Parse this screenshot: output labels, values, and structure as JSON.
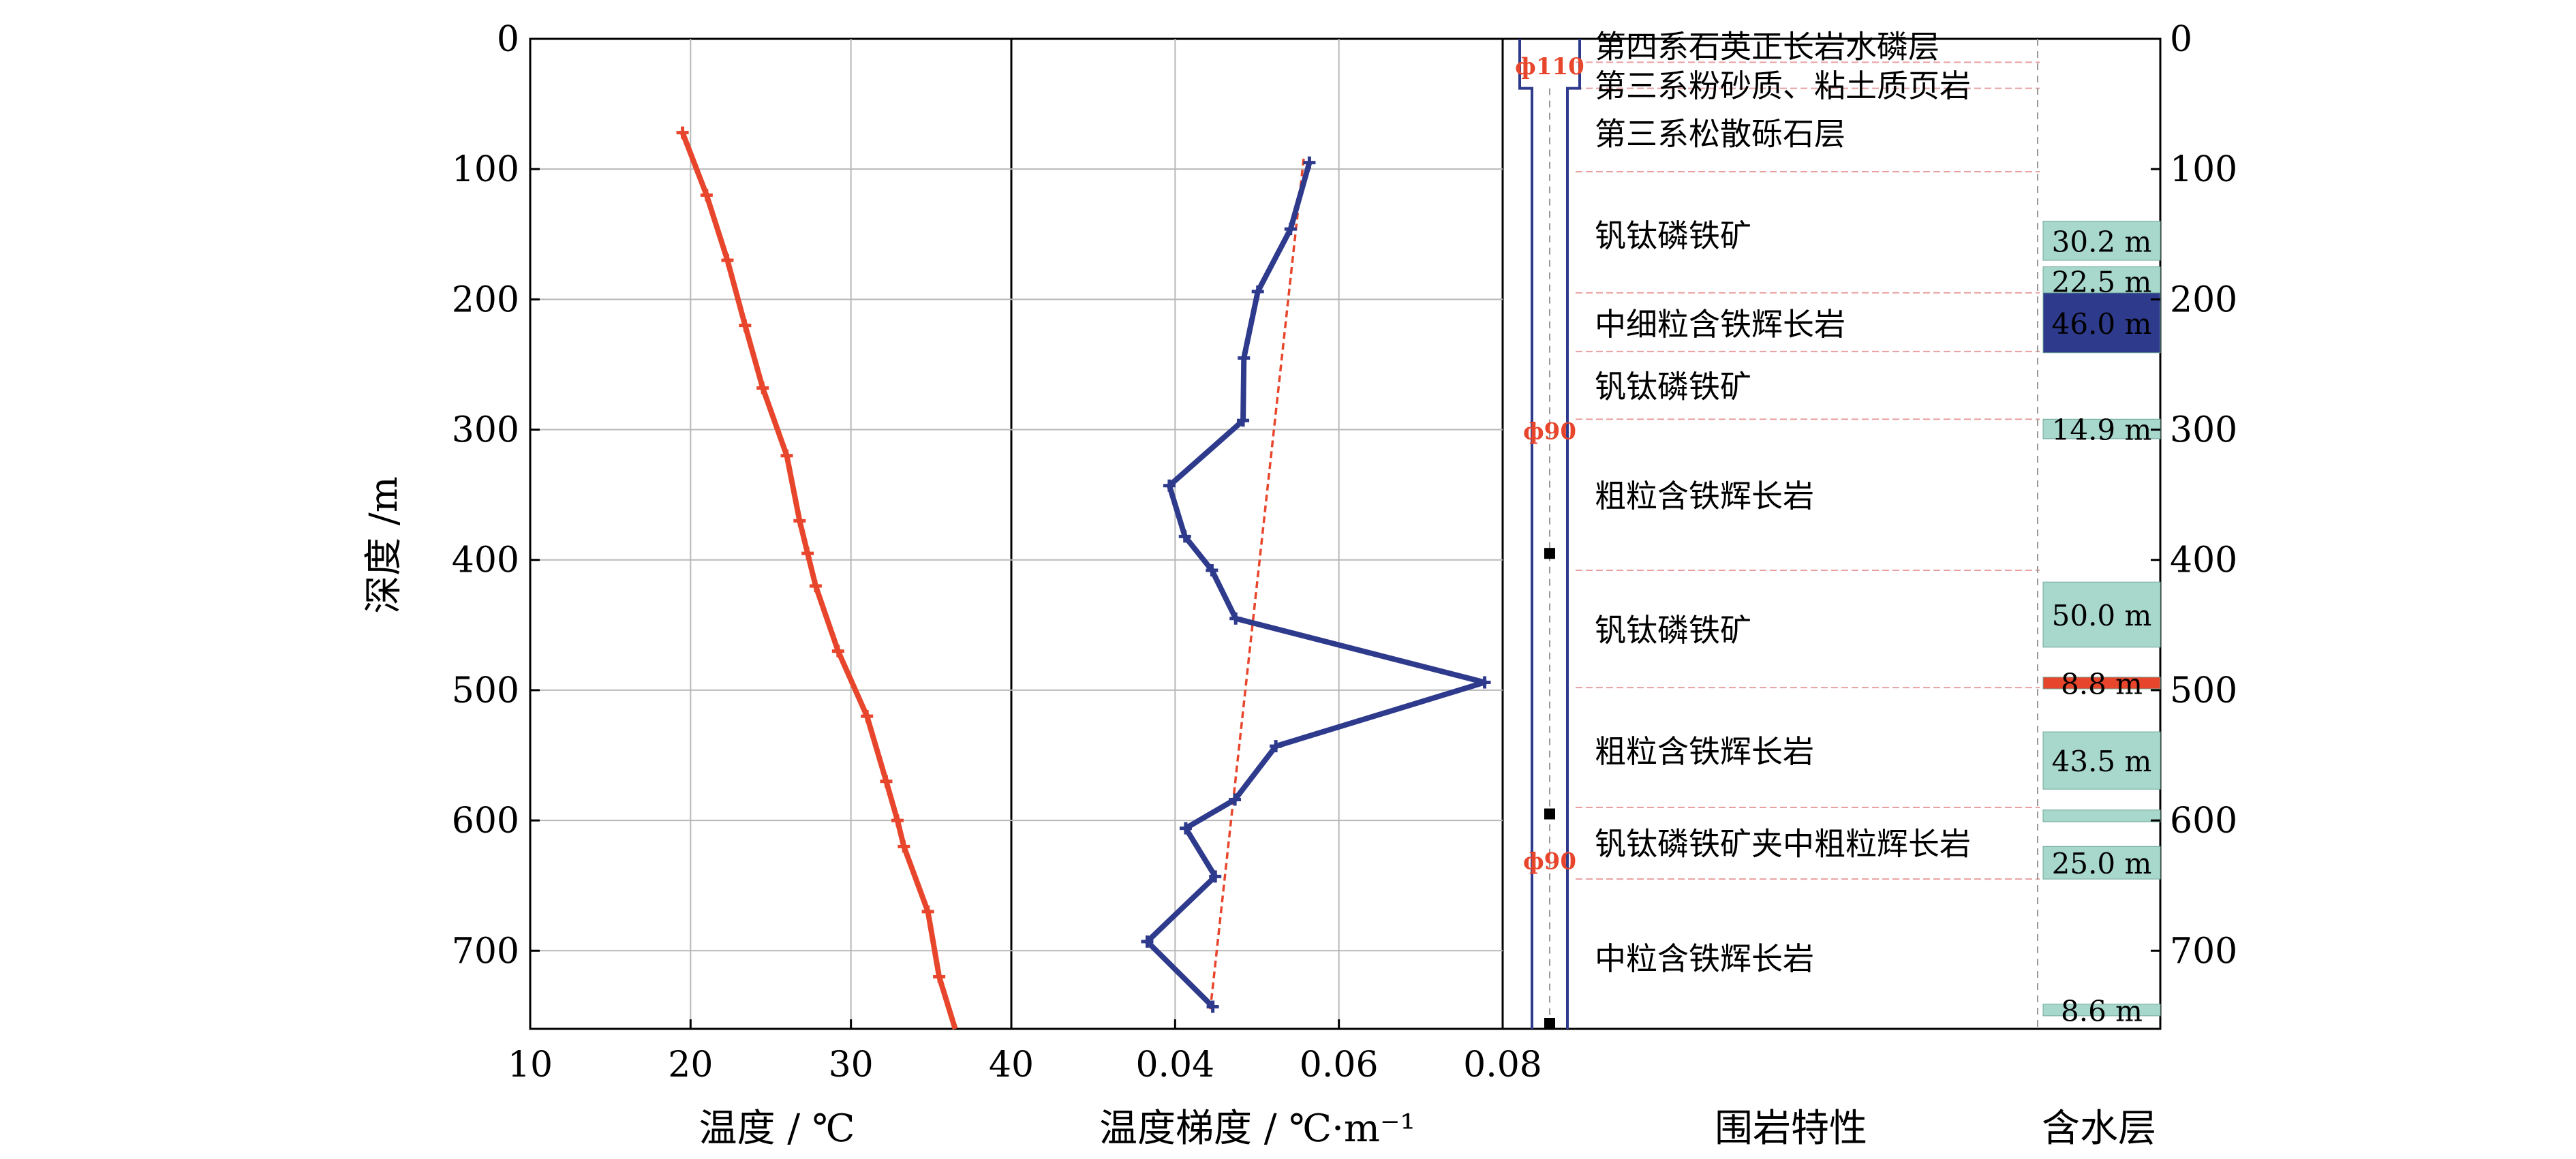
{
  "chart_data": {
    "type": "line",
    "depth_axis": {
      "label": "深度 /m",
      "range": [
        0,
        760
      ],
      "ticks": [
        "0",
        "100",
        "200",
        "300",
        "400",
        "500",
        "600",
        "700"
      ]
    },
    "temperature_panel": {
      "type": "line",
      "xlabel": "温度 / ℃",
      "xlim": [
        10,
        40
      ],
      "xticks": [
        "10",
        "20",
        "30",
        "40"
      ],
      "grid": true,
      "color": "#E8462C",
      "points": [
        [
          19.5,
          72
        ],
        [
          21,
          120
        ],
        [
          22.3,
          170
        ],
        [
          23.4,
          220
        ],
        [
          24.5,
          268
        ],
        [
          26,
          320
        ],
        [
          26.8,
          370
        ],
        [
          27.3,
          395
        ],
        [
          27.8,
          420
        ],
        [
          29.2,
          470
        ],
        [
          31,
          520
        ],
        [
          32.2,
          570
        ],
        [
          32.9,
          600
        ],
        [
          33.3,
          620
        ],
        [
          34.8,
          670
        ],
        [
          35.5,
          720
        ],
        [
          36.5,
          760
        ]
      ]
    },
    "gradient_panel": {
      "type": "line",
      "xlabel": "温度梯度 / ℃·m⁻¹",
      "xlim": [
        0.02,
        0.08
      ],
      "xticks": [
        "0.04",
        "0.06",
        "0.08"
      ],
      "grid": true,
      "color": "#2E3A8C",
      "points": [
        [
          0.0564,
          95
        ],
        [
          0.0541,
          146
        ],
        [
          0.0501,
          194
        ],
        [
          0.0484,
          245
        ],
        [
          0.0483,
          293
        ],
        [
          0.0393,
          343
        ],
        [
          0.0412,
          382
        ],
        [
          0.0445,
          408
        ],
        [
          0.0474,
          445
        ],
        [
          0.0778,
          494
        ],
        [
          0.0523,
          543
        ],
        [
          0.0473,
          584
        ],
        [
          0.0413,
          606
        ],
        [
          0.0449,
          643
        ],
        [
          0.0366,
          693
        ],
        [
          0.0446,
          743
        ]
      ],
      "trend": {
        "color": "#E8462C",
        "style": "dashed",
        "points": [
          [
            0.0557,
            92
          ],
          [
            0.0443,
            745
          ]
        ]
      }
    },
    "well_column": {
      "casing_labels": [
        {
          "text": "ф110",
          "depth": 20
        },
        {
          "text": "ф90",
          "depth": 300
        },
        {
          "text": "ф90",
          "depth": 630
        }
      ],
      "markers": [
        395,
        595,
        765
      ]
    },
    "lithology": {
      "xlabel": "围岩特性",
      "boundaries": [
        18,
        38,
        102,
        195,
        240,
        292,
        408,
        498,
        590,
        645
      ],
      "layers": [
        {
          "name": "第四系石英正长岩水磷层",
          "depth": 5
        },
        {
          "name": "第三系粉砂质、粘土质页岩",
          "depth": 35
        },
        {
          "name": "第三系松散砾石层",
          "depth": 72
        },
        {
          "name": "钒钛磷铁矿",
          "depth": 150
        },
        {
          "name": "中细粒含铁辉长岩",
          "depth": 218
        },
        {
          "name": "钒钛磷铁矿",
          "depth": 266
        },
        {
          "name": "粗粒含铁辉长岩",
          "depth": 350
        },
        {
          "name": "钒钛磷铁矿",
          "depth": 453
        },
        {
          "name": "粗粒含铁辉长岩",
          "depth": 546
        },
        {
          "name": "钒钛磷铁矿夹中粗粒辉长岩",
          "depth": 617
        },
        {
          "name": "中粒含铁辉长岩",
          "depth": 705
        }
      ]
    },
    "aquifers": {
      "xlabel": "含水层",
      "colors": {
        "teal": "#A8D8CC",
        "navy": "#2E3A8C",
        "red": "#E8462C"
      },
      "items": [
        {
          "label": "30.2 m",
          "top": 140,
          "bottom": 170,
          "fill": "teal",
          "text_color": "#000000"
        },
        {
          "label": "22.5 m",
          "top": 175,
          "bottom": 197,
          "fill": "teal",
          "text_color": "#000000"
        },
        {
          "label": "46.0 m",
          "top": 195,
          "bottom": 241,
          "fill": "navy",
          "text_color": "#000000"
        },
        {
          "label": "14.9 m",
          "top": 292,
          "bottom": 307,
          "fill": "teal",
          "text_color": "#000000"
        },
        {
          "label": "50.0 m",
          "top": 417,
          "bottom": 467,
          "fill": "teal",
          "text_color": "#000000"
        },
        {
          "label": "8.8 m",
          "top": 490,
          "bottom": 499,
          "fill": "red",
          "text_color": "#000000"
        },
        {
          "label": "43.5 m",
          "top": 532,
          "bottom": 576,
          "fill": "teal",
          "text_color": "#000000"
        },
        {
          "label": "",
          "top": 592,
          "bottom": 601,
          "fill": "teal",
          "text_color": "#000000"
        },
        {
          "label": "25.0 m",
          "top": 620,
          "bottom": 645,
          "fill": "teal",
          "text_color": "#000000"
        },
        {
          "label": "8.6 m",
          "top": 741,
          "bottom": 750,
          "fill": "teal",
          "text_color": "#000000"
        }
      ]
    }
  }
}
